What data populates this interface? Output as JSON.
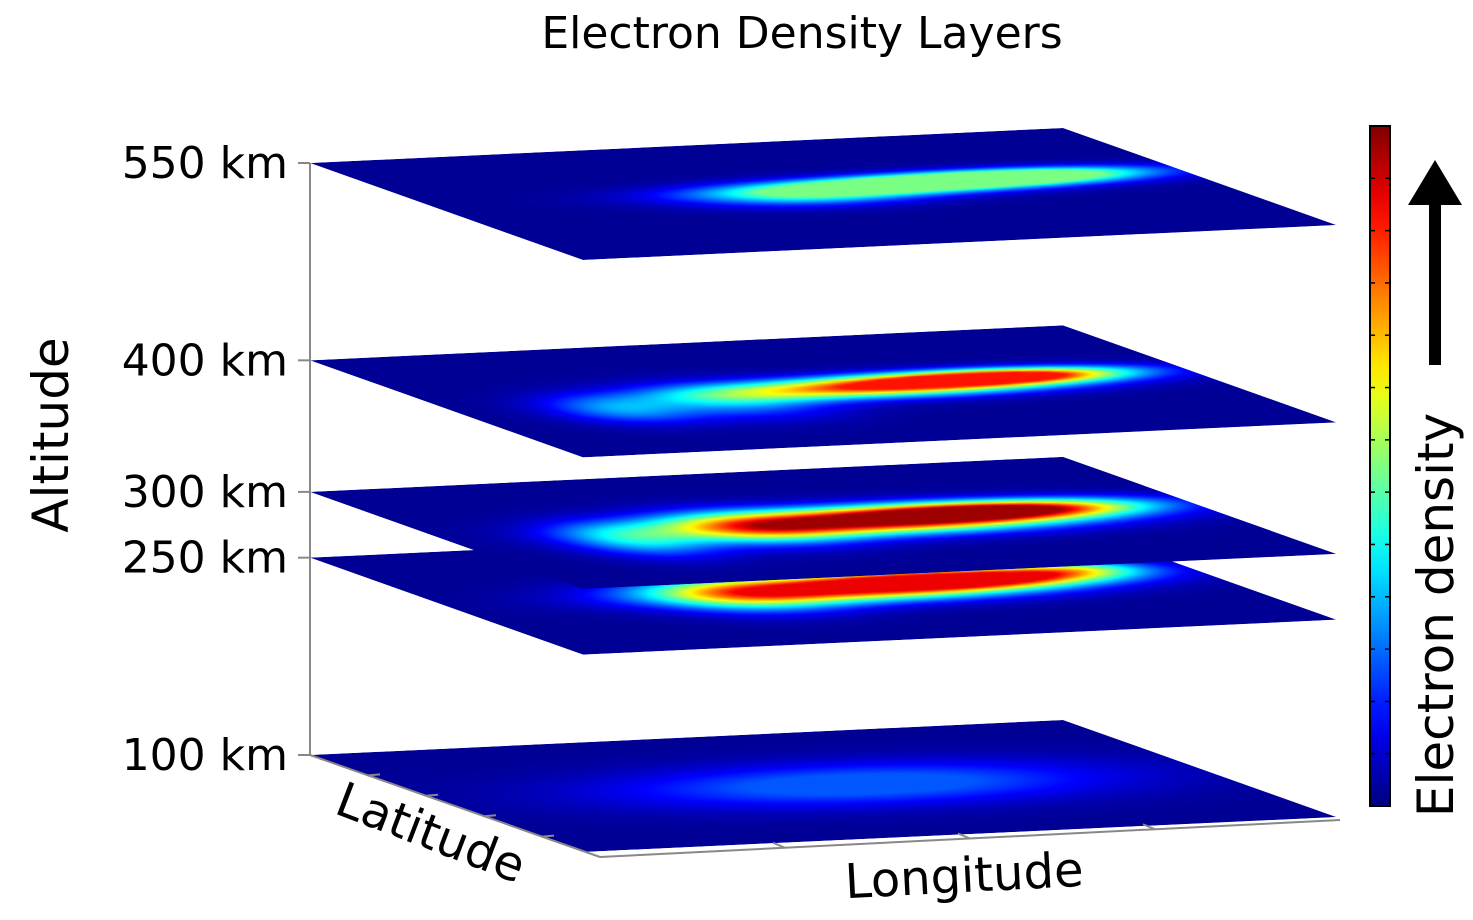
{
  "chart_data": {
    "type": "heatmap",
    "title": "Electron Density Layers",
    "zlabel": "Altitude",
    "xlabel": "Longitude",
    "ylabel": "Latitude",
    "colorbar": {
      "label": "Electron density",
      "colormap": "jet",
      "arrow": "up",
      "tick_count": 12
    },
    "layers": [
      {
        "label": "550 km",
        "altitude_km": 550,
        "peak": 0.5,
        "blobs": [
          {
            "x": 0.62,
            "y": 0.45,
            "sx": 0.16,
            "sy": 0.06,
            "a": 0.7
          },
          {
            "x": 0.78,
            "y": 0.42,
            "sx": 0.12,
            "sy": 0.05,
            "a": 0.6
          },
          {
            "x": 0.48,
            "y": 0.52,
            "sx": 0.1,
            "sy": 0.07,
            "a": 0.25
          }
        ]
      },
      {
        "label": "400 km",
        "altitude_km": 400,
        "peak": 0.88,
        "blobs": [
          {
            "x": 0.6,
            "y": 0.48,
            "sx": 0.16,
            "sy": 0.07,
            "a": 0.85
          },
          {
            "x": 0.76,
            "y": 0.44,
            "sx": 0.11,
            "sy": 0.05,
            "a": 0.85
          },
          {
            "x": 0.36,
            "y": 0.55,
            "sx": 0.08,
            "sy": 0.12,
            "a": 0.25
          },
          {
            "x": 0.2,
            "y": 0.58,
            "sx": 0.06,
            "sy": 0.1,
            "a": 0.25
          }
        ]
      },
      {
        "label": "300 km",
        "altitude_km": 300,
        "peak": 1.0,
        "blobs": [
          {
            "x": 0.58,
            "y": 0.5,
            "sx": 0.18,
            "sy": 0.09,
            "a": 1.0
          },
          {
            "x": 0.75,
            "y": 0.46,
            "sx": 0.12,
            "sy": 0.06,
            "a": 0.8
          },
          {
            "x": 0.4,
            "y": 0.52,
            "sx": 0.08,
            "sy": 0.12,
            "a": 0.35
          },
          {
            "x": 0.22,
            "y": 0.58,
            "sx": 0.06,
            "sy": 0.12,
            "a": 0.3
          }
        ]
      },
      {
        "label": "250 km",
        "altitude_km": 250,
        "peak": 0.92,
        "blobs": [
          {
            "x": 0.56,
            "y": 0.5,
            "sx": 0.17,
            "sy": 0.09,
            "a": 0.95
          },
          {
            "x": 0.72,
            "y": 0.47,
            "sx": 0.12,
            "sy": 0.06,
            "a": 0.75
          },
          {
            "x": 0.38,
            "y": 0.53,
            "sx": 0.08,
            "sy": 0.12,
            "a": 0.35
          },
          {
            "x": 0.86,
            "y": 0.42,
            "sx": 0.06,
            "sy": 0.05,
            "a": 0.25
          }
        ]
      },
      {
        "label": "100 km",
        "altitude_km": 100,
        "peak": 0.2,
        "blobs": [
          {
            "x": 0.55,
            "y": 0.5,
            "sx": 0.22,
            "sy": 0.14,
            "a": 0.25
          }
        ]
      }
    ]
  }
}
